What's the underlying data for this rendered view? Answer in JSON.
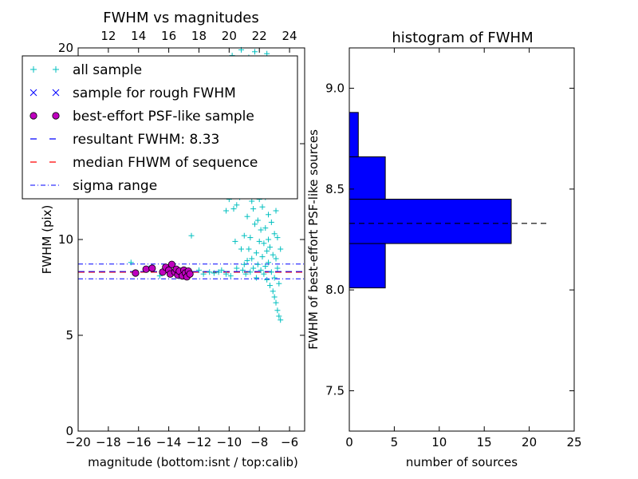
{
  "chart_data": [
    {
      "type": "scatter",
      "title": "FWHM vs magnitudes",
      "xlabel": "magnitude (bottom:isnt / top:calib)",
      "ylabel": "FWHM (pix)",
      "xlim": [
        -20,
        -5
      ],
      "ylim": [
        0,
        20
      ],
      "x_ticks": [
        -20,
        -18,
        -16,
        -14,
        -12,
        -10,
        -8,
        -6
      ],
      "x_tick_labels": [
        "−20",
        "−18",
        "−16",
        "−14",
        "−12",
        "−10",
        "−8",
        "−6"
      ],
      "y_ticks": [
        0,
        5,
        10,
        15,
        20
      ],
      "y_tick_labels": [
        "0",
        "5",
        "10",
        "15",
        "20"
      ],
      "top_axis": {
        "offset_calib_minus_inst": 30,
        "ticks": [
          12,
          14,
          16,
          18,
          20,
          22,
          24
        ],
        "labels": [
          "12",
          "14",
          "16",
          "18",
          "20",
          "22",
          "24"
        ]
      },
      "grid": false,
      "legend_placement": "upper-left",
      "legend": [
        {
          "label": "all sample",
          "marker": "plus",
          "color": "#00bfbf"
        },
        {
          "label": "sample for rough FWHM",
          "marker": "x",
          "color": "#0000ff"
        },
        {
          "label": "best-effort PSF-like sample",
          "marker": "circle",
          "color": "#bf00bf"
        },
        {
          "label": "resultant FWHM: 8.33",
          "marker": "dashed",
          "color": "#0000ff"
        },
        {
          "label": "median FHWM of sequence",
          "marker": "dashed",
          "color": "#ff0000"
        },
        {
          "label": "sigma range",
          "marker": "dashdot",
          "color": "#0000ff"
        }
      ],
      "resultant_fwhm": 8.33,
      "median_fwhm_sequence": 8.3,
      "sigma_range": [
        7.95,
        8.72
      ],
      "all_sample": [
        [
          -16.5,
          8.8
        ],
        [
          -15.3,
          8.5
        ],
        [
          -14.6,
          8.1
        ],
        [
          -13.8,
          8.3
        ],
        [
          -13.2,
          8.2
        ],
        [
          -12.5,
          10.2
        ],
        [
          -12.0,
          8.4
        ],
        [
          -11.7,
          8.2
        ],
        [
          -11.3,
          8.3
        ],
        [
          -11.0,
          8.25
        ],
        [
          -10.7,
          8.3
        ],
        [
          -10.5,
          8.4
        ],
        [
          -10.2,
          8.2
        ],
        [
          -10.2,
          11.5
        ],
        [
          -10.0,
          12.1
        ],
        [
          -9.9,
          8.1
        ],
        [
          -9.9,
          12.4
        ],
        [
          -9.7,
          11.6
        ],
        [
          -9.6,
          9.9
        ],
        [
          -9.5,
          8.5
        ],
        [
          -9.5,
          11.8
        ],
        [
          -9.3,
          12.2
        ],
        [
          -9.2,
          9.5
        ],
        [
          -9.1,
          8.4
        ],
        [
          -9.0,
          8.7
        ],
        [
          -9.0,
          10.2
        ],
        [
          -8.9,
          8.2
        ],
        [
          -8.8,
          11.2
        ],
        [
          -8.8,
          8.9
        ],
        [
          -8.7,
          9.5
        ],
        [
          -8.6,
          10.1
        ],
        [
          -8.6,
          8.3
        ],
        [
          -8.5,
          12.0
        ],
        [
          -8.5,
          9.0
        ],
        [
          -8.4,
          11.6
        ],
        [
          -8.4,
          8.5
        ],
        [
          -8.3,
          10.8
        ],
        [
          -8.3,
          12.3
        ],
        [
          -8.2,
          9.3
        ],
        [
          -8.2,
          8.0
        ],
        [
          -8.1,
          11.0
        ],
        [
          -8.1,
          8.7
        ],
        [
          -8.0,
          9.9
        ],
        [
          -8.0,
          12.1
        ],
        [
          -7.9,
          8.4
        ],
        [
          -7.9,
          10.5
        ],
        [
          -7.8,
          9.1
        ],
        [
          -7.8,
          11.7
        ],
        [
          -7.7,
          8.2
        ],
        [
          -7.7,
          9.8
        ],
        [
          -7.6,
          10.6
        ],
        [
          -7.6,
          12.2
        ],
        [
          -7.6,
          8.6
        ],
        [
          -7.5,
          9.4
        ],
        [
          -7.5,
          7.9
        ],
        [
          -7.4,
          11.3
        ],
        [
          -7.4,
          10.0
        ],
        [
          -7.4,
          8.8
        ],
        [
          -7.3,
          7.6
        ],
        [
          -7.3,
          9.6
        ],
        [
          -7.2,
          10.9
        ],
        [
          -7.2,
          8.3
        ],
        [
          -7.2,
          12.3
        ],
        [
          -7.1,
          7.3
        ],
        [
          -7.1,
          9.2
        ],
        [
          -7.0,
          10.3
        ],
        [
          -7.0,
          8.0
        ],
        [
          -7.0,
          7.0
        ],
        [
          -6.9,
          11.5
        ],
        [
          -6.9,
          6.7
        ],
        [
          -6.9,
          9.0
        ],
        [
          -6.8,
          6.3
        ],
        [
          -6.8,
          10.1
        ],
        [
          -6.8,
          8.5
        ],
        [
          -6.7,
          6.0
        ],
        [
          -6.7,
          7.7
        ],
        [
          -6.6,
          5.8
        ],
        [
          -6.6,
          9.5
        ],
        [
          -9.8,
          19.6
        ],
        [
          -9.2,
          19.9
        ],
        [
          -8.7,
          19.5
        ],
        [
          -8.3,
          19.8
        ],
        [
          -8.9,
          19.2
        ],
        [
          -9.5,
          19.3
        ],
        [
          -7.5,
          19.7
        ]
      ],
      "psf_sample": [
        [
          -16.2,
          8.25
        ],
        [
          -15.5,
          8.45
        ],
        [
          -15.1,
          8.5
        ],
        [
          -14.4,
          8.3
        ],
        [
          -14.2,
          8.55
        ],
        [
          -14.0,
          8.4
        ],
        [
          -13.9,
          8.2
        ],
        [
          -13.8,
          8.7
        ],
        [
          -13.6,
          8.3
        ],
        [
          -13.5,
          8.45
        ],
        [
          -13.4,
          8.15
        ],
        [
          -13.3,
          8.35
        ],
        [
          -13.1,
          8.1
        ],
        [
          -13.0,
          8.4
        ],
        [
          -12.9,
          8.25
        ],
        [
          -12.8,
          8.05
        ],
        [
          -12.7,
          8.35
        ],
        [
          -12.6,
          8.2
        ]
      ]
    },
    {
      "type": "histogram",
      "orientation": "horizontal",
      "title": "histogram of FWHM",
      "xlabel": "number of sources",
      "ylabel": "FWHM of best-effort PSF-like sources",
      "xlim": [
        0,
        25
      ],
      "ylim": [
        7.3,
        9.2
      ],
      "x_ticks": [
        0,
        5,
        10,
        15,
        20,
        25
      ],
      "x_tick_labels": [
        "0",
        "5",
        "10",
        "15",
        "20",
        "25"
      ],
      "y_ticks": [
        7.5,
        8.0,
        8.5,
        9.0
      ],
      "y_tick_labels": [
        "7.5",
        "8.0",
        "8.5",
        "9.0"
      ],
      "bar_color": "#0000ff",
      "bins": [
        {
          "from": 8.01,
          "to": 8.23,
          "count": 4
        },
        {
          "from": 8.23,
          "to": 8.45,
          "count": 18
        },
        {
          "from": 8.45,
          "to": 8.66,
          "count": 4
        },
        {
          "from": 8.66,
          "to": 8.88,
          "count": 1
        }
      ],
      "resultant_line": 8.33,
      "resultant_line_extent": [
        0,
        22
      ]
    }
  ]
}
